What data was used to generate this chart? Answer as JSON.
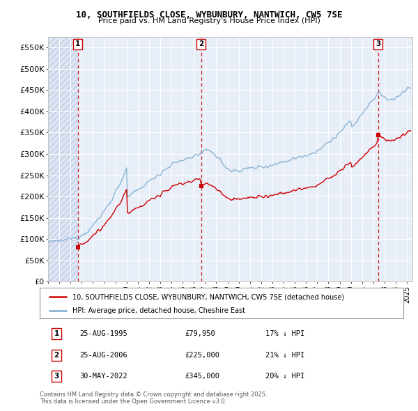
{
  "title_line1": "10, SOUTHFIELDS CLOSE, WYBUNBURY, NANTWICH, CW5 7SE",
  "title_line2": "Price paid vs. HM Land Registry's House Price Index (HPI)",
  "ylim": [
    0,
    575000
  ],
  "yticks": [
    0,
    50000,
    100000,
    150000,
    200000,
    250000,
    300000,
    350000,
    400000,
    450000,
    500000,
    550000
  ],
  "ytick_labels": [
    "£0",
    "£50K",
    "£100K",
    "£150K",
    "£200K",
    "£250K",
    "£300K",
    "£350K",
    "£400K",
    "£450K",
    "£500K",
    "£550K"
  ],
  "xlim_start": 1993.0,
  "xlim_end": 2025.5,
  "background_color": "#e8eef8",
  "sale_color": "#cc0000",
  "hpi_color": "#7aaad0",
  "purchases": [
    {
      "date": 1995.647,
      "price": 79950,
      "label": "1"
    },
    {
      "date": 2006.647,
      "price": 225000,
      "label": "2"
    },
    {
      "date": 2022.414,
      "price": 345000,
      "label": "3"
    }
  ],
  "legend_sale": "10, SOUTHFIELDS CLOSE, WYBUNBURY, NANTWICH, CW5 7SE (detached house)",
  "legend_hpi": "HPI: Average price, detached house, Cheshire East",
  "table": [
    {
      "num": "1",
      "date": "25-AUG-1995",
      "price": "£79,950",
      "pct": "17% ↓ HPI"
    },
    {
      "num": "2",
      "date": "25-AUG-2006",
      "price": "£225,000",
      "pct": "21% ↓ HPI"
    },
    {
      "num": "3",
      "date": "30-MAY-2022",
      "price": "£345,000",
      "pct": "20% ↓ HPI"
    }
  ],
  "footnote": "Contains HM Land Registry data © Crown copyright and database right 2025.\nThis data is licensed under the Open Government Licence v3.0."
}
